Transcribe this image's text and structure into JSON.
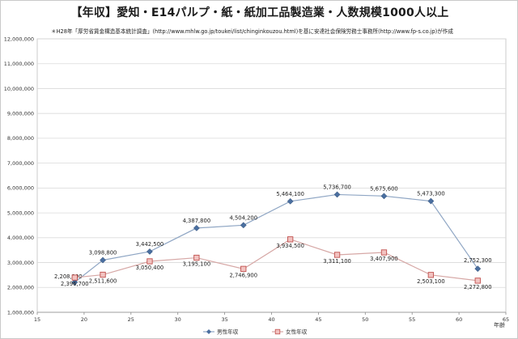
{
  "chart_data": {
    "type": "line",
    "title": "【年収】愛知・E14パルプ・紙・紙加工品製造業・人数規模1000人以上",
    "subtitle": "＊H28年「厚労省賃金構造基本統計調査」(http://www.mhlw.go.jp/toukei/list/chinginkouzou.html)を基に安達社会保険労務士事務所(http://www.fp-s.co.jp)が作成",
    "xlabel": "年齢",
    "ylabel": "",
    "xlim": [
      15,
      65
    ],
    "ylim": [
      1000000,
      12000000
    ],
    "x_ticks": [
      "15",
      "20",
      "25",
      "30",
      "35",
      "40",
      "45",
      "50",
      "55",
      "60",
      "65"
    ],
    "y_ticks": [
      "1,000,000",
      "2,000,000",
      "3,000,000",
      "4,000,000",
      "5,000,000",
      "6,000,000",
      "7,000,000",
      "8,000,000",
      "9,000,000",
      "10,000,000",
      "11,000,000",
      "12,000,000"
    ],
    "grid": true,
    "legend_position": "bottom",
    "series": [
      {
        "name": "男性年収",
        "color": "#4a6fa0",
        "marker": "diamond",
        "points": [
          {
            "x": 19,
            "y": 2208200,
            "label": "2,208,200"
          },
          {
            "x": 22,
            "y": 3098800,
            "label": "3,098,800"
          },
          {
            "x": 27,
            "y": 3442500,
            "label": "3,442,500"
          },
          {
            "x": 32,
            "y": 4387800,
            "label": "4,387,800"
          },
          {
            "x": 37,
            "y": 4504200,
            "label": "4,504,200"
          },
          {
            "x": 42,
            "y": 5464100,
            "label": "5,464,100"
          },
          {
            "x": 47,
            "y": 5736700,
            "label": "5,736,700"
          },
          {
            "x": 52,
            "y": 5675600,
            "label": "5,675,600"
          },
          {
            "x": 57,
            "y": 5473300,
            "label": "5,473,300"
          },
          {
            "x": 62,
            "y": 2752300,
            "label": "2,752,300"
          }
        ]
      },
      {
        "name": "女性年収",
        "color": "#c0504d",
        "marker": "square",
        "points": [
          {
            "x": 19,
            "y": 2396700,
            "label": "2,396,700"
          },
          {
            "x": 22,
            "y": 2511600,
            "label": "2,511,600"
          },
          {
            "x": 27,
            "y": 3050400,
            "label": "3,050,400"
          },
          {
            "x": 32,
            "y": 3195100,
            "label": "3,195,100"
          },
          {
            "x": 37,
            "y": 2746900,
            "label": "2,746,900"
          },
          {
            "x": 42,
            "y": 3934500,
            "label": "3,934,500"
          },
          {
            "x": 47,
            "y": 3311100,
            "label": "3,311,100"
          },
          {
            "x": 52,
            "y": 3407900,
            "label": "3,407,900"
          },
          {
            "x": 57,
            "y": 2503100,
            "label": "2,503,100"
          },
          {
            "x": 62,
            "y": 2272800,
            "label": "2,272,800"
          }
        ]
      }
    ]
  }
}
